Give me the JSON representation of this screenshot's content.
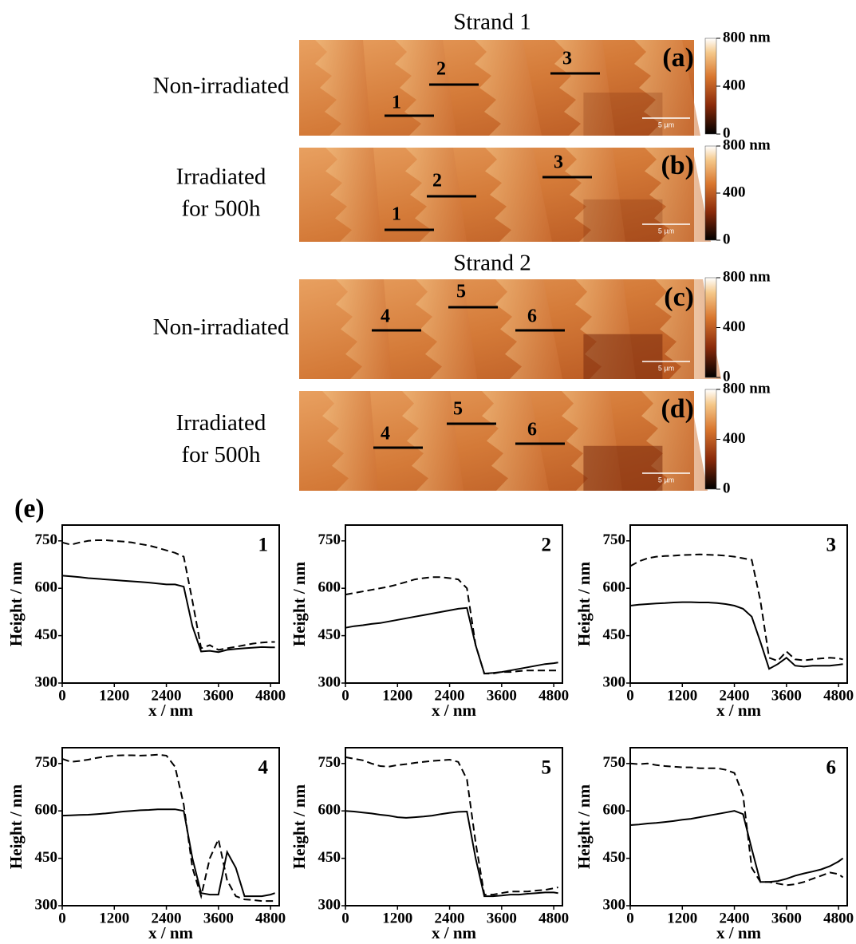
{
  "figure": {
    "label_e": "(e)",
    "scale_bar": "5 µm",
    "colorbar_ticks": [
      "800 nm",
      "400",
      "0"
    ],
    "strands": [
      {
        "title": "Strand 1",
        "panels": [
          {
            "label": "(a)",
            "condition": [
              "Non-irradiated"
            ],
            "profiles": [
              "1",
              "2",
              "3"
            ]
          },
          {
            "label": "(b)",
            "condition": [
              "Irradiated",
              "for 500h"
            ],
            "profiles": [
              "1",
              "2",
              "3"
            ]
          }
        ]
      },
      {
        "title": "Strand 2",
        "panels": [
          {
            "label": "(c)",
            "condition": [
              "Non-irradiated"
            ],
            "profiles": [
              "4",
              "5",
              "6"
            ]
          },
          {
            "label": "(d)",
            "condition": [
              "Irradiated",
              "for 500h"
            ],
            "profiles": [
              "4",
              "5",
              "6"
            ]
          }
        ]
      }
    ]
  },
  "chart_data": [
    {
      "type": "line",
      "title": "1",
      "x_label": "x / nm",
      "y_label": "Height / nm",
      "x": [
        0,
        200,
        400,
        600,
        800,
        1000,
        1200,
        1400,
        1600,
        1800,
        2000,
        2200,
        2400,
        2600,
        2800,
        3000,
        3200,
        3400,
        3600,
        3800,
        4000,
        4200,
        4400,
        4600,
        4800,
        4900
      ],
      "xlim": [
        0,
        5000
      ],
      "xticks": [
        0,
        1200,
        2400,
        3600,
        4800
      ],
      "ylim": [
        300,
        800
      ],
      "yticks": [
        300,
        450,
        600,
        750
      ],
      "series": [
        {
          "color": "#000000",
          "dashed": false,
          "values": [
            640,
            638,
            635,
            632,
            630,
            628,
            626,
            624,
            622,
            620,
            618,
            615,
            612,
            612,
            605,
            480,
            400,
            402,
            398,
            405,
            408,
            410,
            412,
            414,
            413,
            413
          ]
        },
        {
          "color": "#000000",
          "dashed": true,
          "values": [
            745,
            738,
            745,
            750,
            752,
            752,
            750,
            748,
            745,
            740,
            735,
            728,
            720,
            712,
            700,
            560,
            410,
            420,
            405,
            410,
            415,
            420,
            425,
            428,
            430,
            430
          ]
        }
      ]
    },
    {
      "type": "line",
      "title": "2",
      "x_label": "x / nm",
      "y_label": "Height / nm",
      "x": [
        0,
        200,
        400,
        600,
        800,
        1000,
        1200,
        1400,
        1600,
        1800,
        2000,
        2200,
        2400,
        2600,
        2800,
        3000,
        3200,
        3400,
        3600,
        3800,
        4000,
        4200,
        4400,
        4600,
        4800,
        4900
      ],
      "xlim": [
        0,
        5000
      ],
      "xticks": [
        0,
        1200,
        2400,
        3600,
        4800
      ],
      "ylim": [
        300,
        800
      ],
      "yticks": [
        300,
        450,
        600,
        750
      ],
      "series": [
        {
          "color": "#000000",
          "dashed": false,
          "values": [
            475,
            480,
            483,
            487,
            490,
            495,
            500,
            505,
            510,
            515,
            520,
            525,
            530,
            535,
            538,
            420,
            330,
            332,
            335,
            340,
            345,
            350,
            355,
            360,
            363,
            365
          ]
        },
        {
          "color": "#000000",
          "dashed": true,
          "values": [
            580,
            585,
            590,
            595,
            600,
            605,
            612,
            620,
            628,
            632,
            635,
            635,
            632,
            628,
            600,
            420,
            330,
            330,
            335,
            335,
            338,
            340,
            340,
            340,
            340,
            340
          ]
        }
      ]
    },
    {
      "type": "line",
      "title": "3",
      "x_label": "x / nm",
      "y_label": "Height / nm",
      "x": [
        0,
        200,
        400,
        600,
        800,
        1000,
        1200,
        1400,
        1600,
        1800,
        2000,
        2200,
        2400,
        2600,
        2800,
        3000,
        3200,
        3400,
        3600,
        3800,
        4000,
        4200,
        4400,
        4600,
        4800,
        4900
      ],
      "xlim": [
        0,
        5000
      ],
      "xticks": [
        0,
        1200,
        2400,
        3600,
        4800
      ],
      "ylim": [
        300,
        800
      ],
      "yticks": [
        300,
        450,
        600,
        750
      ],
      "series": [
        {
          "color": "#000000",
          "dashed": false,
          "values": [
            545,
            548,
            550,
            552,
            553,
            555,
            556,
            556,
            555,
            555,
            553,
            550,
            545,
            535,
            510,
            430,
            345,
            360,
            380,
            355,
            352,
            355,
            355,
            355,
            358,
            360
          ]
        },
        {
          "color": "#000000",
          "dashed": true,
          "values": [
            670,
            685,
            695,
            700,
            702,
            703,
            705,
            706,
            707,
            706,
            705,
            703,
            700,
            695,
            690,
            560,
            380,
            370,
            400,
            375,
            372,
            375,
            378,
            380,
            378,
            375
          ]
        }
      ]
    },
    {
      "type": "line",
      "title": "4",
      "x_label": "x / nm",
      "y_label": "Height / nm",
      "x": [
        0,
        200,
        400,
        600,
        800,
        1000,
        1200,
        1400,
        1600,
        1800,
        2000,
        2200,
        2400,
        2600,
        2800,
        3000,
        3200,
        3400,
        3600,
        3800,
        4000,
        4200,
        4400,
        4600,
        4800,
        4900
      ],
      "xlim": [
        0,
        5000
      ],
      "xticks": [
        0,
        1200,
        2400,
        3600,
        4800
      ],
      "ylim": [
        300,
        800
      ],
      "yticks": [
        300,
        450,
        600,
        750
      ],
      "series": [
        {
          "color": "#000000",
          "dashed": false,
          "values": [
            585,
            586,
            587,
            588,
            590,
            592,
            595,
            598,
            600,
            602,
            603,
            605,
            605,
            605,
            600,
            450,
            340,
            335,
            335,
            470,
            420,
            330,
            330,
            330,
            335,
            340
          ]
        },
        {
          "color": "#000000",
          "dashed": true,
          "values": [
            765,
            755,
            758,
            762,
            768,
            772,
            775,
            776,
            776,
            775,
            776,
            778,
            775,
            740,
            620,
            420,
            330,
            450,
            510,
            380,
            330,
            320,
            318,
            315,
            315,
            315
          ]
        }
      ]
    },
    {
      "type": "line",
      "title": "5",
      "x_label": "x / nm",
      "y_label": "Height / nm",
      "x": [
        0,
        200,
        400,
        600,
        800,
        1000,
        1200,
        1400,
        1600,
        1800,
        2000,
        2200,
        2400,
        2600,
        2800,
        3000,
        3200,
        3400,
        3600,
        3800,
        4000,
        4200,
        4400,
        4600,
        4800,
        4900
      ],
      "xlim": [
        0,
        5000
      ],
      "xticks": [
        0,
        1200,
        2400,
        3600,
        4800
      ],
      "ylim": [
        300,
        800
      ],
      "yticks": [
        300,
        450,
        600,
        750
      ],
      "series": [
        {
          "color": "#000000",
          "dashed": false,
          "values": [
            600,
            598,
            595,
            592,
            588,
            585,
            580,
            578,
            580,
            582,
            585,
            590,
            594,
            597,
            598,
            450,
            330,
            330,
            332,
            335,
            335,
            338,
            340,
            342,
            342,
            340
          ]
        },
        {
          "color": "#000000",
          "dashed": true,
          "values": [
            770,
            765,
            760,
            750,
            742,
            740,
            745,
            748,
            752,
            755,
            758,
            760,
            762,
            755,
            700,
            500,
            335,
            335,
            340,
            345,
            345,
            345,
            348,
            350,
            355,
            358
          ]
        }
      ]
    },
    {
      "type": "line",
      "title": "6",
      "x_label": "x / nm",
      "y_label": "Height / nm",
      "x": [
        0,
        200,
        400,
        600,
        800,
        1000,
        1200,
        1400,
        1600,
        1800,
        2000,
        2200,
        2400,
        2600,
        2800,
        3000,
        3200,
        3400,
        3600,
        3800,
        4000,
        4200,
        4400,
        4600,
        4800,
        4900
      ],
      "xlim": [
        0,
        5000
      ],
      "xticks": [
        0,
        1200,
        2400,
        3600,
        4800
      ],
      "ylim": [
        300,
        800
      ],
      "yticks": [
        300,
        450,
        600,
        750
      ],
      "series": [
        {
          "color": "#000000",
          "dashed": false,
          "values": [
            555,
            557,
            560,
            562,
            565,
            568,
            572,
            575,
            580,
            585,
            590,
            595,
            600,
            590,
            480,
            375,
            375,
            378,
            385,
            395,
            402,
            408,
            415,
            425,
            440,
            450
          ]
        },
        {
          "color": "#000000",
          "dashed": true,
          "values": [
            750,
            748,
            750,
            745,
            742,
            740,
            738,
            738,
            735,
            735,
            735,
            730,
            720,
            650,
            420,
            375,
            375,
            370,
            365,
            368,
            375,
            385,
            395,
            405,
            400,
            390
          ]
        }
      ]
    }
  ]
}
